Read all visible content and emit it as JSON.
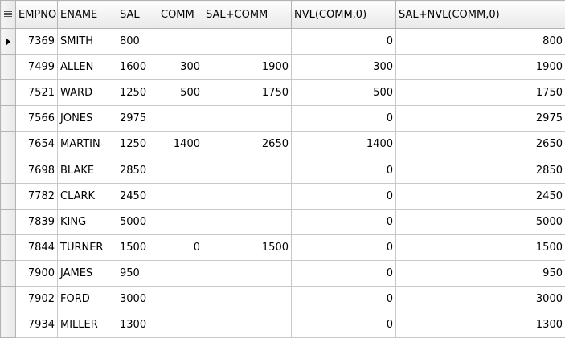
{
  "columns": [
    "EMPNO",
    "ENAME",
    "SAL",
    "COMM",
    "SAL+COMM",
    "NVL(COMM,0)",
    "SAL+NVL(COMM,0)"
  ],
  "rows": [
    [
      "7369",
      "SMITH",
      "800",
      "",
      "",
      "0",
      "800"
    ],
    [
      "7499",
      "ALLEN",
      "1600",
      "300",
      "1900",
      "300",
      "1900"
    ],
    [
      "7521",
      "WARD",
      "1250",
      "500",
      "1750",
      "500",
      "1750"
    ],
    [
      "7566",
      "JONES",
      "2975",
      "",
      "",
      "0",
      "2975"
    ],
    [
      "7654",
      "MARTIN",
      "1250",
      "1400",
      "2650",
      "1400",
      "2650"
    ],
    [
      "7698",
      "BLAKE",
      "2850",
      "",
      "",
      "0",
      "2850"
    ],
    [
      "7782",
      "CLARK",
      "2450",
      "",
      "",
      "0",
      "2450"
    ],
    [
      "7839",
      "KING",
      "5000",
      "",
      "",
      "0",
      "5000"
    ],
    [
      "7844",
      "TURNER",
      "1500",
      "0",
      "1500",
      "0",
      "1500"
    ],
    [
      "7900",
      "JAMES",
      "950",
      "",
      "",
      "0",
      "950"
    ],
    [
      "7902",
      "FORD",
      "3000",
      "",
      "",
      "0",
      "3000"
    ],
    [
      "7934",
      "MILLER",
      "1300",
      "",
      "",
      "0",
      "1300"
    ]
  ],
  "icons": {
    "header_corner": "grid-menu-icon",
    "current_row": "row-pointer-icon"
  },
  "current_row_index": 0
}
